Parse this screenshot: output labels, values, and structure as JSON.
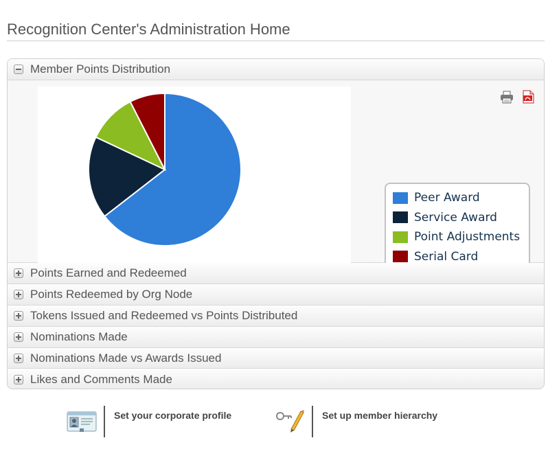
{
  "page": {
    "title": "Recognition Center's Administration Home"
  },
  "accordion": {
    "open_section": {
      "label": "Member Points Distribution",
      "toggle": "minus",
      "tools": [
        {
          "icon": "printer-icon"
        },
        {
          "icon": "pdf-icon"
        }
      ]
    },
    "collapsed_sections": [
      {
        "label": "Points Earned and Redeemed",
        "toggle": "plus"
      },
      {
        "label": "Points Redeemed by Org Node",
        "toggle": "plus"
      },
      {
        "label": "Tokens Issued and Redeemed vs Points Distributed",
        "toggle": "plus"
      },
      {
        "label": "Nominations Made",
        "toggle": "plus"
      },
      {
        "label": "Nominations Made vs Awards Issued",
        "toggle": "plus"
      },
      {
        "label": "Likes and Comments Made",
        "toggle": "plus"
      }
    ]
  },
  "chart_data": {
    "type": "pie",
    "title": "",
    "categories": [
      "Peer Award",
      "Service Award",
      "Point Adjustments",
      "Serial Card"
    ],
    "values": [
      64.5,
      17.5,
      10.5,
      7.5
    ],
    "colors": [
      "#2f7ed8",
      "#0d233a",
      "#8bbc21",
      "#910000"
    ],
    "legend_position": "right",
    "start_angle": "top, clockwise"
  },
  "quick_links": [
    {
      "label": "Set your corporate profile",
      "icon": "id-card-icon"
    },
    {
      "label": "Set up member hierarchy",
      "icon": "key-pencil-icon"
    }
  ]
}
